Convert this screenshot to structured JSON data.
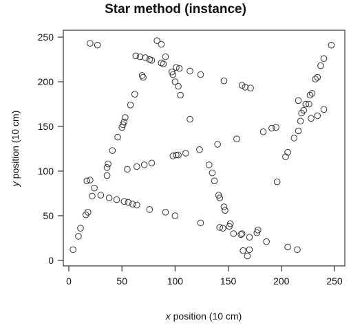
{
  "chart_data": {
    "type": "scatter",
    "title": "Star method (instance)",
    "xlabel_var": "x",
    "xlabel_rest": " position (10 cm)",
    "ylabel_var": "y",
    "ylabel_rest": " position (10 cm)",
    "xlim": [
      0,
      250
    ],
    "ylim": [
      0,
      250
    ],
    "x_ticks": [
      0,
      50,
      100,
      150,
      200,
      250
    ],
    "y_ticks": [
      0,
      50,
      100,
      150,
      200,
      250
    ],
    "grid": false,
    "legend": "none",
    "marker": "open-circle",
    "points": [
      [
        20,
        243
      ],
      [
        27,
        241
      ],
      [
        83,
        246
      ],
      [
        87,
        242
      ],
      [
        63,
        229
      ],
      [
        67,
        228
      ],
      [
        72,
        227
      ],
      [
        76,
        225
      ],
      [
        78,
        224
      ],
      [
        87,
        221
      ],
      [
        89,
        220
      ],
      [
        91,
        228
      ],
      [
        97,
        211
      ],
      [
        98,
        208
      ],
      [
        101,
        216
      ],
      [
        104,
        215
      ],
      [
        100,
        200
      ],
      [
        103,
        195
      ],
      [
        105,
        185
      ],
      [
        114,
        212
      ],
      [
        124,
        208
      ],
      [
        146,
        201
      ],
      [
        163,
        196
      ],
      [
        166,
        194
      ],
      [
        171,
        193
      ],
      [
        69,
        207
      ],
      [
        70,
        205
      ],
      [
        62,
        186
      ],
      [
        58,
        174
      ],
      [
        53,
        160
      ],
      [
        52,
        155
      ],
      [
        51,
        152
      ],
      [
        50,
        149
      ],
      [
        46,
        138
      ],
      [
        41,
        123
      ],
      [
        37,
        108
      ],
      [
        36,
        104
      ],
      [
        36,
        95
      ],
      [
        114,
        158
      ],
      [
        247,
        241
      ],
      [
        240,
        226
      ],
      [
        237,
        218
      ],
      [
        234,
        205
      ],
      [
        232,
        203
      ],
      [
        229,
        187
      ],
      [
        227,
        185
      ],
      [
        223,
        175
      ],
      [
        226,
        175
      ],
      [
        216,
        179
      ],
      [
        219,
        165
      ],
      [
        221,
        168
      ],
      [
        218,
        156
      ],
      [
        234,
        162
      ],
      [
        240,
        169
      ],
      [
        228,
        159
      ],
      [
        216,
        145
      ],
      [
        212,
        137
      ],
      [
        195,
        149
      ],
      [
        191,
        148
      ],
      [
        183,
        144
      ],
      [
        158,
        136
      ],
      [
        206,
        121
      ],
      [
        204,
        116
      ],
      [
        196,
        88
      ],
      [
        140,
        130
      ],
      [
        123,
        124
      ],
      [
        110,
        120
      ],
      [
        103,
        118
      ],
      [
        101,
        118
      ],
      [
        98,
        117
      ],
      [
        78,
        109
      ],
      [
        71,
        107
      ],
      [
        64,
        105
      ],
      [
        55,
        102
      ],
      [
        20,
        90
      ],
      [
        17,
        89
      ],
      [
        24,
        81
      ],
      [
        22,
        72
      ],
      [
        30,
        73
      ],
      [
        38,
        70
      ],
      [
        45,
        68
      ],
      [
        52,
        66
      ],
      [
        56,
        65
      ],
      [
        60,
        63
      ],
      [
        64,
        62
      ],
      [
        76,
        57
      ],
      [
        91,
        54
      ],
      [
        100,
        50
      ],
      [
        124,
        42
      ],
      [
        132,
        107
      ],
      [
        135,
        98
      ],
      [
        137,
        89
      ],
      [
        141,
        73
      ],
      [
        142,
        70
      ],
      [
        146,
        60
      ],
      [
        147,
        56
      ],
      [
        152,
        41
      ],
      [
        151,
        38
      ],
      [
        142,
        37
      ],
      [
        145,
        36
      ],
      [
        155,
        30
      ],
      [
        162,
        29
      ],
      [
        163,
        30
      ],
      [
        178,
        34
      ],
      [
        177,
        31
      ],
      [
        170,
        26
      ],
      [
        186,
        21
      ],
      [
        170,
        12
      ],
      [
        164,
        11
      ],
      [
        168,
        5
      ],
      [
        206,
        15
      ],
      [
        215,
        12
      ],
      [
        18,
        54
      ],
      [
        16,
        51
      ],
      [
        11,
        36
      ],
      [
        9,
        27
      ],
      [
        4,
        12
      ]
    ]
  }
}
